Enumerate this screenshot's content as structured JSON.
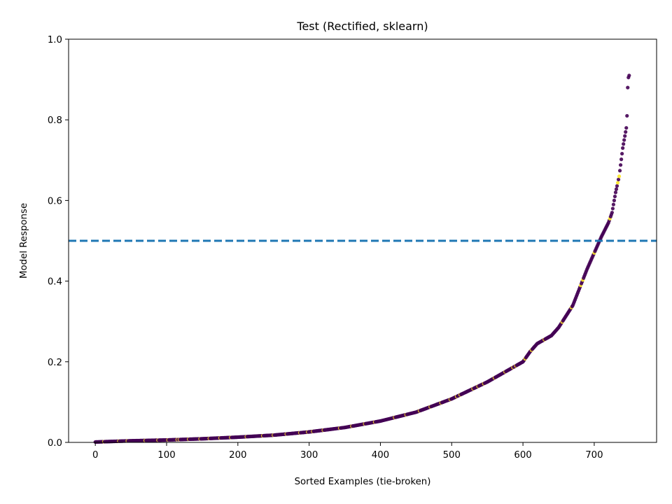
{
  "chart_data": {
    "type": "scatter",
    "title": "Test (Rectified, sklearn)",
    "xlabel": "Sorted Examples (tie-broken)",
    "ylabel": "Model Response",
    "xlim": [
      -37.5,
      787.5
    ],
    "ylim": [
      0.0,
      1.0
    ],
    "xticks": [
      0,
      100,
      200,
      300,
      400,
      500,
      600,
      700
    ],
    "xtick_labels": [
      "0",
      "100",
      "200",
      "300",
      "400",
      "500",
      "600",
      "700"
    ],
    "yticks": [
      0.0,
      0.2,
      0.4,
      0.6,
      0.8,
      1.0
    ],
    "ytick_labels": [
      "0.0",
      "0.2",
      "0.4",
      "0.6",
      "0.8",
      "1.0"
    ],
    "threshold": 0.5,
    "grid": false,
    "colors": {
      "negative_class": "#440154",
      "positive_class": "#fde725",
      "threshold_line": "#1f77b4"
    },
    "curve_points": [
      [
        0,
        0.001
      ],
      [
        50,
        0.004
      ],
      [
        100,
        0.006
      ],
      [
        150,
        0.009
      ],
      [
        200,
        0.013
      ],
      [
        250,
        0.018
      ],
      [
        300,
        0.026
      ],
      [
        350,
        0.037
      ],
      [
        400,
        0.053
      ],
      [
        450,
        0.075
      ],
      [
        500,
        0.108
      ],
      [
        550,
        0.15
      ],
      [
        600,
        0.2
      ],
      [
        610,
        0.225
      ],
      [
        620,
        0.245
      ],
      [
        640,
        0.265
      ],
      [
        650,
        0.285
      ],
      [
        670,
        0.34
      ],
      [
        690,
        0.43
      ],
      [
        700,
        0.47
      ],
      [
        710,
        0.51
      ],
      [
        720,
        0.545
      ],
      [
        725,
        0.57
      ],
      [
        730,
        0.62
      ],
      [
        735,
        0.66
      ],
      [
        740,
        0.73
      ],
      [
        743,
        0.76
      ],
      [
        745,
        0.78
      ],
      [
        746,
        0.81
      ],
      [
        747,
        0.88
      ],
      [
        748,
        0.905
      ],
      [
        749,
        0.91
      ]
    ],
    "n_points": 750,
    "positive_indices": [
      12,
      33,
      45,
      70,
      88,
      102,
      115,
      118,
      131,
      147,
      160,
      175,
      190,
      212,
      235,
      250,
      268,
      287,
      298,
      305,
      320,
      343,
      360,
      378,
      392,
      420,
      436,
      455,
      470,
      485,
      498,
      507,
      512,
      530,
      537,
      545,
      560,
      575,
      586,
      590,
      603,
      612,
      630,
      655,
      668,
      681,
      684,
      700,
      722,
      733,
      735
    ]
  }
}
